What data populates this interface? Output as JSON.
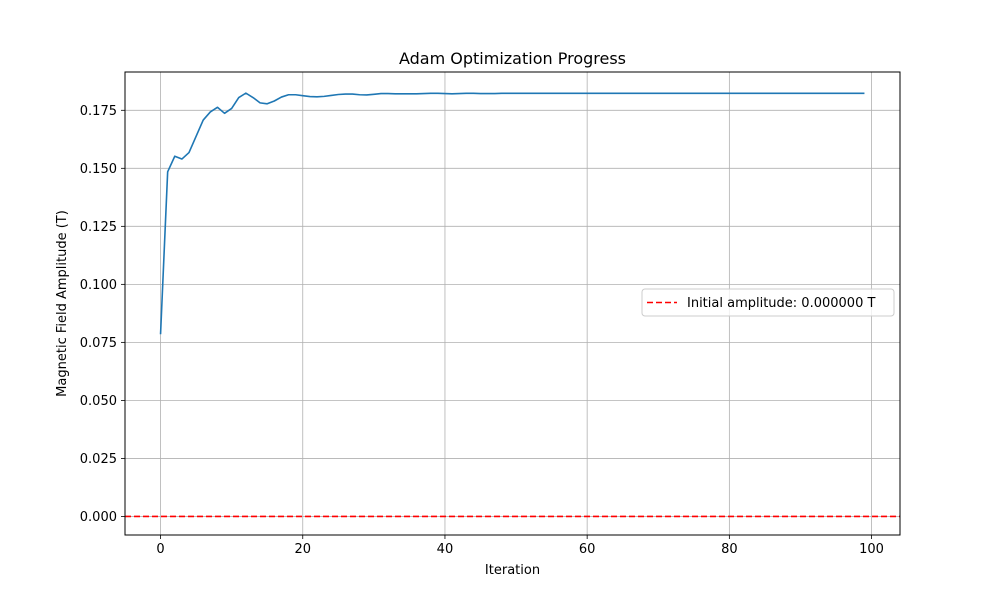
{
  "chart_data": {
    "type": "line",
    "title": "Adam Optimization Progress",
    "xlabel": "Iteration",
    "ylabel": "Magnetic Field Amplitude (T)",
    "xlim": [
      -5,
      104
    ],
    "ylim": [
      -0.008,
      0.1915
    ],
    "xticks": [
      0,
      20,
      40,
      60,
      80,
      100
    ],
    "xtick_labels": [
      "0",
      "20",
      "40",
      "60",
      "80",
      "100"
    ],
    "yticks": [
      0.0,
      0.025,
      0.05,
      0.075,
      0.1,
      0.125,
      0.15,
      0.175
    ],
    "ytick_labels": [
      "0.000",
      "0.025",
      "0.050",
      "0.075",
      "0.100",
      "0.125",
      "0.150",
      "0.175"
    ],
    "grid": true,
    "legend_position": "center-right",
    "series": [
      {
        "color": "#1f77b4",
        "style": "solid",
        "x": [
          0,
          1,
          2,
          3,
          4,
          5,
          6,
          7,
          8,
          9,
          10,
          11,
          12,
          13,
          14,
          15,
          16,
          17,
          18,
          19,
          20,
          21,
          22,
          23,
          24,
          25,
          26,
          27,
          28,
          29,
          30,
          31,
          32,
          33,
          34,
          35,
          36,
          37,
          38,
          39,
          40,
          41,
          42,
          43,
          44,
          45,
          46,
          47,
          48,
          49,
          50,
          51,
          52,
          53,
          54,
          55,
          56,
          57,
          58,
          59,
          60,
          61,
          62,
          63,
          64,
          65,
          66,
          67,
          68,
          69,
          70,
          71,
          72,
          73,
          74,
          75,
          76,
          77,
          78,
          79,
          80,
          81,
          82,
          83,
          84,
          85,
          86,
          87,
          88,
          89,
          90,
          91,
          92,
          93,
          94,
          95,
          96,
          97,
          98,
          99
        ],
        "y": [
          0.0785,
          0.1485,
          0.1552,
          0.154,
          0.1568,
          0.1638,
          0.1708,
          0.1743,
          0.1763,
          0.1737,
          0.1758,
          0.1805,
          0.1824,
          0.1805,
          0.1782,
          0.1778,
          0.179,
          0.1807,
          0.1817,
          0.1817,
          0.1813,
          0.1809,
          0.1808,
          0.181,
          0.1814,
          0.1818,
          0.182,
          0.182,
          0.1817,
          0.1816,
          0.1819,
          0.1822,
          0.1822,
          0.1821,
          0.1821,
          0.1821,
          0.1821,
          0.1822,
          0.1823,
          0.1823,
          0.1822,
          0.1821,
          0.1822,
          0.1823,
          0.1823,
          0.1822,
          0.1822,
          0.1822,
          0.1823,
          0.1823,
          0.1823,
          0.1823,
          0.1823,
          0.1823,
          0.1823,
          0.1823,
          0.1823,
          0.1823,
          0.1823,
          0.1823,
          0.1823,
          0.1823,
          0.1823,
          0.1823,
          0.1823,
          0.1823,
          0.1823,
          0.1823,
          0.1823,
          0.1823,
          0.1823,
          0.1823,
          0.1823,
          0.1823,
          0.1823,
          0.1823,
          0.1823,
          0.1823,
          0.1823,
          0.1823,
          0.1823,
          0.1823,
          0.1823,
          0.1823,
          0.1823,
          0.1823,
          0.1823,
          0.1823,
          0.1823,
          0.1823,
          0.1823,
          0.1823,
          0.1823,
          0.1823,
          0.1823,
          0.1823,
          0.1823,
          0.1823,
          0.1823,
          0.1823
        ]
      }
    ],
    "hlines": [
      {
        "name": "Initial amplitude: 0.000000 T",
        "y": 0.0,
        "color": "#ff0000",
        "style": "dashed"
      }
    ]
  }
}
